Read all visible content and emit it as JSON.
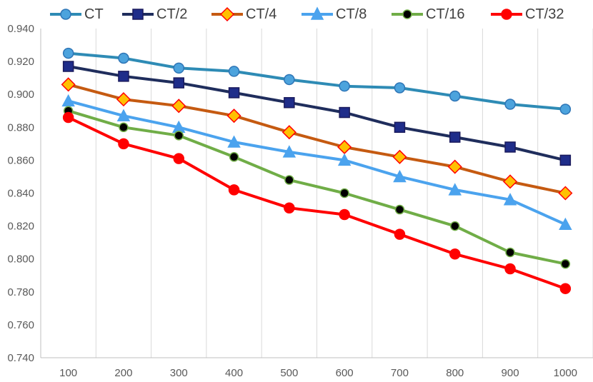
{
  "chart_data": {
    "type": "line",
    "title": "",
    "xlabel": "",
    "ylabel": "",
    "categories": [
      "100",
      "200",
      "300",
      "400",
      "500",
      "600",
      "700",
      "800",
      "900",
      "1000"
    ],
    "ylim": [
      0.74,
      0.94
    ],
    "y_ticks": [
      "0.740",
      "0.760",
      "0.780",
      "0.800",
      "0.820",
      "0.840",
      "0.860",
      "0.880",
      "0.900",
      "0.920",
      "0.940"
    ],
    "grid": "vertical",
    "legend_position": "top",
    "series": [
      {
        "name": "CT",
        "color": "#2E8BB5",
        "marker": "circle",
        "marker_fill": "#4CA3DD",
        "marker_stroke": "#2E75B6",
        "values": [
          0.925,
          0.922,
          0.916,
          0.914,
          0.909,
          0.905,
          0.904,
          0.899,
          0.894,
          0.891
        ]
      },
      {
        "name": "CT/2",
        "color": "#1F2D5C",
        "marker": "square",
        "marker_fill": "#1F2D8A",
        "marker_stroke": "#1A1A5C",
        "values": [
          0.917,
          0.911,
          0.907,
          0.901,
          0.895,
          0.889,
          0.88,
          0.874,
          0.868,
          0.86
        ]
      },
      {
        "name": "CT/4",
        "color": "#C55A11",
        "marker": "diamond",
        "marker_fill": "#FFC000",
        "marker_stroke": "#FF0000",
        "values": [
          0.906,
          0.897,
          0.893,
          0.887,
          0.877,
          0.868,
          0.862,
          0.856,
          0.847,
          0.84
        ]
      },
      {
        "name": "CT/8",
        "color": "#4BA3EE",
        "marker": "triangle",
        "marker_fill": "#4BA3EE",
        "marker_stroke": "#4BA3EE",
        "values": [
          0.896,
          0.887,
          0.88,
          0.871,
          0.865,
          0.86,
          0.85,
          0.842,
          0.836,
          0.821
        ]
      },
      {
        "name": "CT/16",
        "color": "#70AD47",
        "marker": "circle",
        "marker_fill": "#000000",
        "marker_stroke": "#70AD47",
        "values": [
          0.89,
          0.88,
          0.875,
          0.862,
          0.848,
          0.84,
          0.83,
          0.82,
          0.804,
          0.797
        ]
      },
      {
        "name": "CT/32",
        "color": "#FF0000",
        "marker": "circle",
        "marker_fill": "#FF0000",
        "marker_stroke": "#FF0000",
        "values": [
          0.886,
          0.87,
          0.861,
          0.842,
          0.831,
          0.827,
          0.815,
          0.803,
          0.794,
          0.782
        ]
      }
    ]
  }
}
